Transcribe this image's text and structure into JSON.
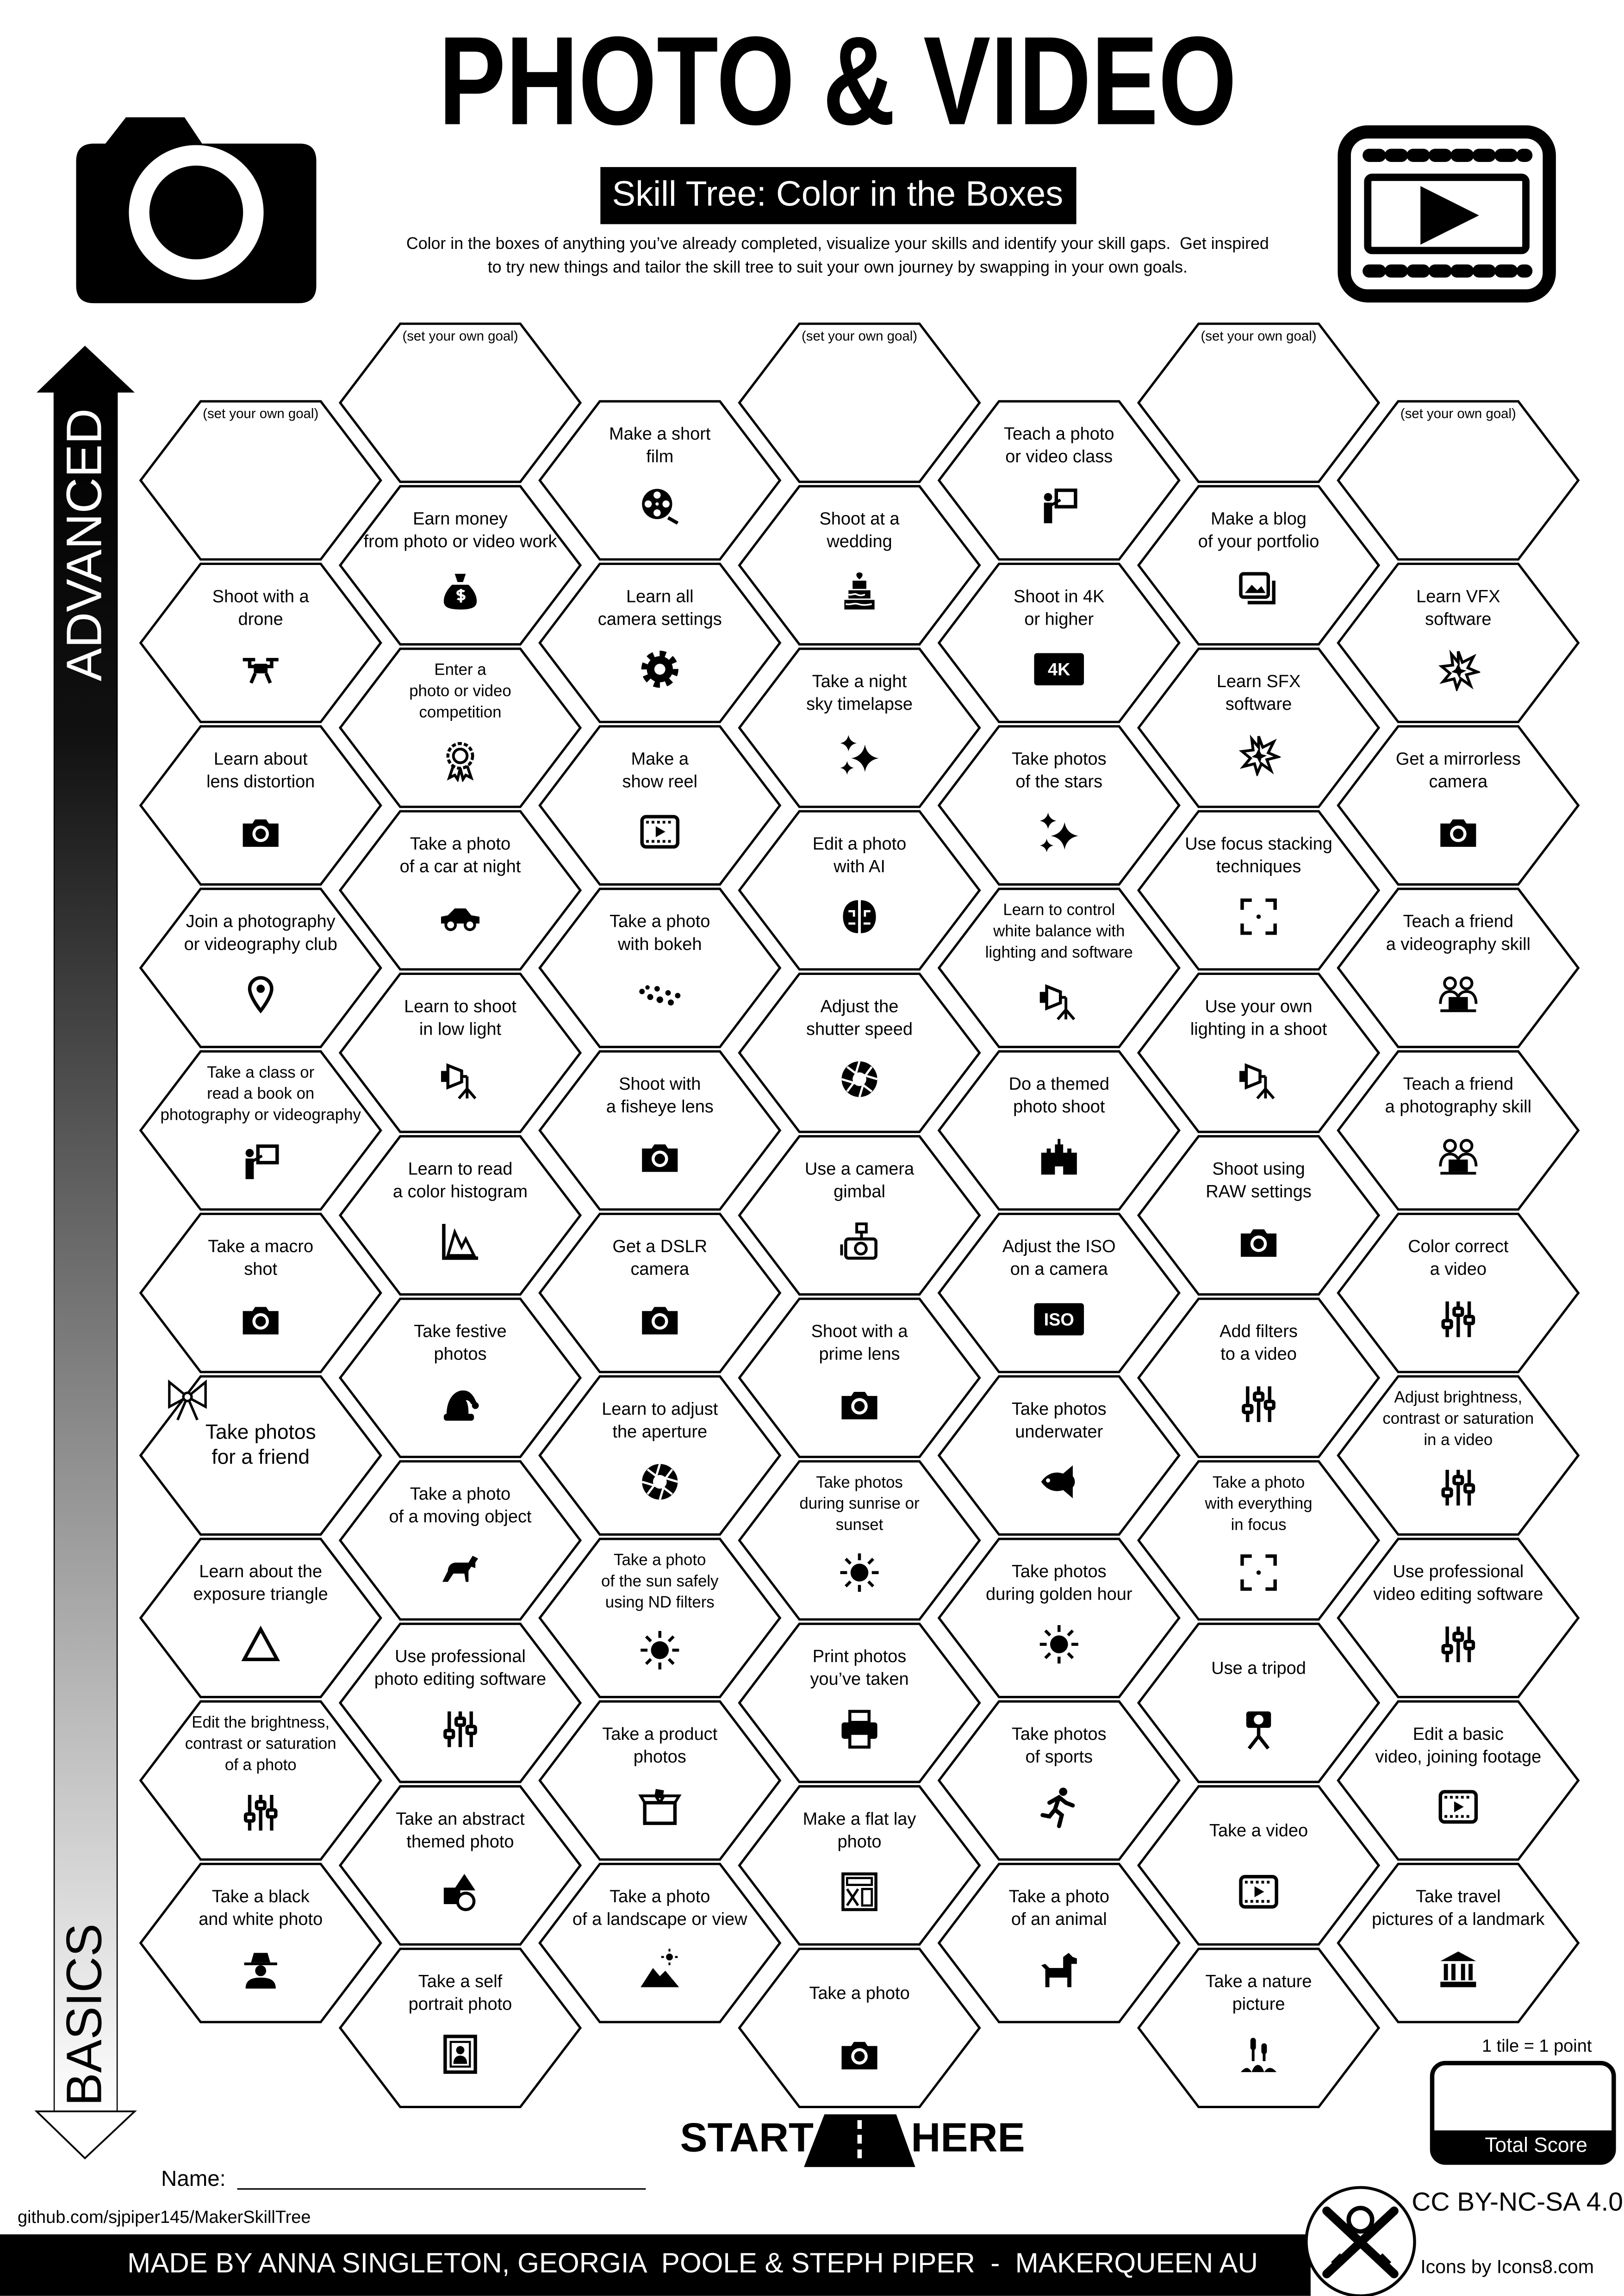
{
  "header": {
    "title": "PHOTO & VIDEO",
    "subtitle": "Skill Tree: Color in the Boxes",
    "description": [
      "Color in the boxes of anything you’ve already completed, visualize your skills and identify your skill gaps.  Get inspired",
      "to try new things and tailor the skill tree to suit your own journey by swapping in your own goals."
    ]
  },
  "axis": {
    "top": "ADVANCED",
    "bottom": "BASICS"
  },
  "columns": [
    [
      {
        "lines": [
          "(set your own goal)"
        ]
      },
      {
        "lines": [
          "Shoot with a",
          "drone"
        ]
      },
      {
        "lines": [
          "Learn about",
          "lens distortion"
        ]
      },
      {
        "lines": [
          "Join a photography",
          "or videography club"
        ]
      },
      {
        "lines": [
          "Take a class or",
          "read a book on",
          "photography or videography"
        ]
      },
      {
        "lines": [
          "Take a macro",
          "shot"
        ]
      },
      {
        "lines": [
          "Take photos",
          "for a friend"
        ]
      },
      {
        "lines": [
          "Learn about the",
          "exposure triangle"
        ]
      },
      {
        "lines": [
          "Edit the brightness,",
          "contrast or saturation",
          "of a photo"
        ]
      },
      {
        "lines": [
          "Take a black",
          "and white photo"
        ]
      }
    ],
    [
      {
        "lines": [
          "(set your own goal)"
        ]
      },
      {
        "lines": [
          "Earn money",
          "from photo or video work"
        ]
      },
      {
        "lines": [
          "Enter a",
          "photo or video",
          "competition"
        ]
      },
      {
        "lines": [
          "Take a photo",
          "of a car at night"
        ]
      },
      {
        "lines": [
          "Learn to shoot",
          "in low light"
        ]
      },
      {
        "lines": [
          "Learn to read",
          "a color histogram"
        ]
      },
      {
        "lines": [
          "Take festive",
          "photos"
        ]
      },
      {
        "lines": [
          "Take a photo",
          "of a moving object"
        ]
      },
      {
        "lines": [
          "Use professional",
          "photo editing software"
        ]
      },
      {
        "lines": [
          "Take an abstract",
          "themed photo"
        ]
      },
      {
        "lines": [
          "Take a self",
          "portrait photo"
        ]
      }
    ],
    [
      {
        "lines": [
          "Make a short",
          "film"
        ]
      },
      {
        "lines": [
          "Learn all",
          "camera settings"
        ]
      },
      {
        "lines": [
          "Make a",
          "show reel"
        ]
      },
      {
        "lines": [
          "Take a photo",
          "with bokeh"
        ]
      },
      {
        "lines": [
          "Shoot with",
          "a fisheye lens"
        ]
      },
      {
        "lines": [
          "Get a DSLR",
          "camera"
        ]
      },
      {
        "lines": [
          "Learn to adjust",
          "the aperture"
        ]
      },
      {
        "lines": [
          "Take a photo",
          "of the sun safely",
          "using ND filters"
        ]
      },
      {
        "lines": [
          "Take a product",
          "photos"
        ]
      },
      {
        "lines": [
          "Take a photo",
          "of a landscape or view"
        ]
      }
    ],
    [
      {
        "lines": [
          "(set your own goal)"
        ]
      },
      {
        "lines": [
          "Shoot at a",
          "wedding"
        ]
      },
      {
        "lines": [
          "Take a night",
          "sky timelapse"
        ]
      },
      {
        "lines": [
          "Edit a photo",
          "with AI"
        ]
      },
      {
        "lines": [
          "Adjust the",
          "shutter speed"
        ]
      },
      {
        "lines": [
          "Use a camera",
          "gimbal"
        ]
      },
      {
        "lines": [
          "Shoot with a",
          "prime lens"
        ]
      },
      {
        "lines": [
          "Take photos",
          "during sunrise or",
          "sunset"
        ]
      },
      {
        "lines": [
          "Print photos",
          "you’ve taken"
        ]
      },
      {
        "lines": [
          "Make a flat lay",
          "photo"
        ]
      },
      {
        "lines": [
          "Take a photo"
        ]
      }
    ],
    [
      {
        "lines": [
          "Teach a photo",
          "or video class"
        ]
      },
      {
        "lines": [
          "Shoot in 4K",
          "or higher"
        ],
        "badge": "4K"
      },
      {
        "lines": [
          "Take photos",
          "of the stars"
        ]
      },
      {
        "lines": [
          "Learn to control",
          "white balance with",
          "lighting and software"
        ]
      },
      {
        "lines": [
          "Do a themed",
          "photo shoot"
        ]
      },
      {
        "lines": [
          "Adjust the ISO",
          "on a camera"
        ],
        "badge": "ISO"
      },
      {
        "lines": [
          "Take photos",
          "underwater"
        ]
      },
      {
        "lines": [
          "Take photos",
          "during golden hour"
        ]
      },
      {
        "lines": [
          "Take photos",
          "of sports"
        ]
      },
      {
        "lines": [
          "Take a photo",
          "of an animal"
        ]
      }
    ],
    [
      {
        "lines": [
          "(set your own goal)"
        ]
      },
      {
        "lines": [
          "Make a blog",
          "of your portfolio"
        ]
      },
      {
        "lines": [
          "Learn SFX",
          "software"
        ]
      },
      {
        "lines": [
          "Use focus stacking",
          "techniques"
        ]
      },
      {
        "lines": [
          "Use your own",
          "lighting in a shoot"
        ]
      },
      {
        "lines": [
          "Shoot using",
          "RAW settings"
        ]
      },
      {
        "lines": [
          "Add filters",
          "to a video"
        ]
      },
      {
        "lines": [
          "Take a photo",
          "with everything",
          "in focus"
        ]
      },
      {
        "lines": [
          "Use a tripod"
        ]
      },
      {
        "lines": [
          "Take a video"
        ]
      },
      {
        "lines": [
          "Take a nature",
          "picture"
        ]
      }
    ],
    [
      {
        "lines": [
          "(set your own goal)"
        ]
      },
      {
        "lines": [
          "Learn VFX",
          "software"
        ]
      },
      {
        "lines": [
          "Get a mirrorless",
          "camera"
        ]
      },
      {
        "lines": [
          "Teach a friend",
          "a videography skill"
        ]
      },
      {
        "lines": [
          "Teach a friend",
          "a photography skill"
        ]
      },
      {
        "lines": [
          "Color correct",
          "a video"
        ]
      },
      {
        "lines": [
          "Adjust brightness,",
          "contrast or saturation",
          "in a video"
        ]
      },
      {
        "lines": [
          "Use professional",
          "video editing software"
        ]
      },
      {
        "lines": [
          "Edit a basic",
          "video, joining footage"
        ]
      },
      {
        "lines": [
          "Take travel",
          "pictures of a landmark"
        ]
      }
    ]
  ],
  "start": {
    "left": "START",
    "right": "HERE"
  },
  "name_label": "Name:",
  "repo": "github.com/sjpiper145/MakerSkillTree",
  "score": {
    "note": "1 tile = 1 point",
    "label": "Total Score"
  },
  "license": "CC BY-NC-SA 4.0",
  "credits": "Icons by Icons8.com",
  "footer": "MADE BY ANNA SINGLETON, GEORGIA  POOLE & STEPH PIPER  -  MAKERQUEEN AU"
}
